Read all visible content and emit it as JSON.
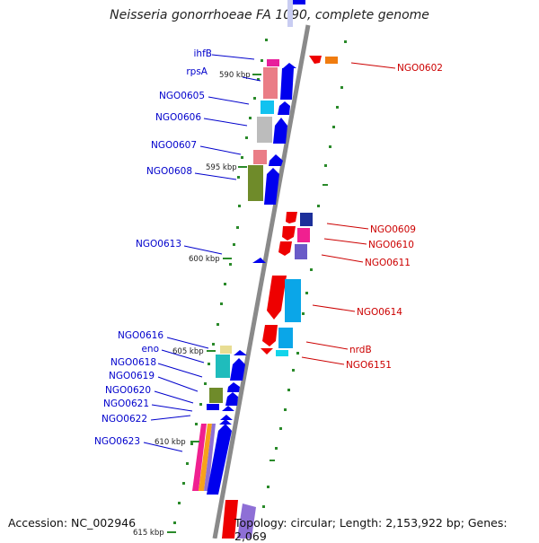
{
  "title": "Neisseria gonorrhoeae FA 1090, complete genome",
  "footer": {
    "accession": "Accession: NC_002946",
    "topology": "Topology: circular; Length: 2,153,922 bp; Genes: 2,069"
  },
  "scale_labels": [
    "590 kbp",
    "595 kbp",
    "600 kbp",
    "605 kbp",
    "610 kbp",
    "615 kbp"
  ],
  "left_labels": [
    "ihfB",
    "rpsA",
    "NGO0605",
    "NGO0606",
    "NGO0607",
    "NGO0608",
    "NGO0613",
    "NGO0616",
    "eno",
    "NGO0618",
    "NGO0619",
    "NGO0620",
    "NGO0621",
    "NGO0622",
    "NGO0623"
  ],
  "right_labels": [
    "NGO0602",
    "NGO0609",
    "NGO0610",
    "NGO0611",
    "NGO0614",
    "nrdB",
    "NGO6151"
  ],
  "colors": {
    "forward_label": "#0000cc",
    "reverse_label": "#cc0000",
    "forward_cds": "#0000ee",
    "reverse_cds": "#ee0000",
    "backbone": "#8a8a8a",
    "gc_ticks": "#2a8a2a"
  }
}
